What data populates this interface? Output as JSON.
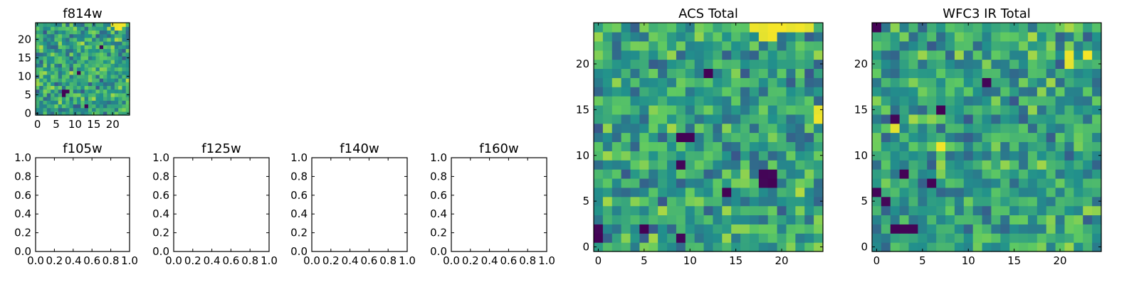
{
  "figure": {
    "colormap": [
      "#440154",
      "#3b528b",
      "#21918c",
      "#5ec962",
      "#fde725"
    ]
  },
  "chart_data": [
    {
      "id": "f814w",
      "type": "heatmap",
      "title": "f814w",
      "rows": 25,
      "cols": 25,
      "x_ticks": [
        0,
        5,
        10,
        15,
        20
      ],
      "y_ticks": [
        0,
        5,
        10,
        15,
        20
      ],
      "xlim": [
        -0.5,
        24.5
      ],
      "ylim": [
        -0.5,
        24.5
      ],
      "seed": 11,
      "value_range": [
        0,
        1
      ],
      "hot_spots": [
        [
          24,
          20
        ],
        [
          24,
          21
        ],
        [
          24,
          22
        ],
        [
          24,
          23
        ],
        [
          23,
          21
        ],
        [
          23,
          22
        ]
      ],
      "dark_spots": [
        [
          6,
          7
        ],
        [
          6,
          8
        ],
        [
          5,
          7
        ],
        [
          2,
          13
        ],
        [
          11,
          11
        ],
        [
          18,
          17
        ]
      ]
    },
    {
      "id": "f105w",
      "type": "empty",
      "title": "f105w",
      "x_ticks": [
        "0.0",
        "0.2",
        "0.4",
        "0.6",
        "0.8",
        "1.0"
      ],
      "y_ticks": [
        "0.0",
        "0.2",
        "0.4",
        "0.6",
        "0.8",
        "1.0"
      ],
      "xlim": [
        0,
        1
      ],
      "ylim": [
        0,
        1
      ]
    },
    {
      "id": "f125w",
      "type": "empty",
      "title": "f125w",
      "x_ticks": [
        "0.0",
        "0.2",
        "0.4",
        "0.6",
        "0.8",
        "1.0"
      ],
      "y_ticks": [
        "0.0",
        "0.2",
        "0.4",
        "0.6",
        "0.8",
        "1.0"
      ],
      "xlim": [
        0,
        1
      ],
      "ylim": [
        0,
        1
      ]
    },
    {
      "id": "f140w",
      "type": "empty",
      "title": "f140w",
      "x_ticks": [
        "0.0",
        "0.2",
        "0.4",
        "0.6",
        "0.8",
        "1.0"
      ],
      "y_ticks": [
        "0.0",
        "0.2",
        "0.4",
        "0.6",
        "0.8",
        "1.0"
      ],
      "xlim": [
        0,
        1
      ],
      "ylim": [
        0,
        1
      ]
    },
    {
      "id": "f160w",
      "type": "empty",
      "title": "f160w",
      "x_ticks": [
        "0.0",
        "0.2",
        "0.4",
        "0.6",
        "0.8",
        "1.0"
      ],
      "y_ticks": [
        "0.0",
        "0.2",
        "0.4",
        "0.6",
        "0.8",
        "1.0"
      ],
      "xlim": [
        0,
        1
      ],
      "ylim": [
        0,
        1
      ]
    },
    {
      "id": "acs-total",
      "type": "heatmap",
      "title": "ACS Total",
      "rows": 25,
      "cols": 25,
      "x_ticks": [
        0,
        5,
        10,
        15,
        20
      ],
      "y_ticks": [
        0,
        5,
        10,
        15,
        20
      ],
      "xlim": [
        -0.5,
        24.5
      ],
      "ylim": [
        -0.5,
        24.5
      ],
      "seed": 29,
      "value_range": [
        0,
        1
      ],
      "hot_spots": [
        [
          24,
          17
        ],
        [
          24,
          18
        ],
        [
          24,
          19
        ],
        [
          24,
          20
        ],
        [
          24,
          21
        ],
        [
          24,
          22
        ],
        [
          24,
          23
        ],
        [
          23,
          18
        ],
        [
          23,
          19
        ],
        [
          15,
          24
        ],
        [
          14,
          24
        ]
      ],
      "dark_spots": [
        [
          19,
          12
        ],
        [
          12,
          10
        ],
        [
          12,
          9
        ],
        [
          9,
          9
        ],
        [
          8,
          18
        ],
        [
          8,
          19
        ],
        [
          7,
          18
        ],
        [
          7,
          19
        ],
        [
          6,
          14
        ],
        [
          2,
          0
        ],
        [
          2,
          5
        ],
        [
          1,
          9
        ],
        [
          1,
          0
        ]
      ]
    },
    {
      "id": "wfc3-ir-total",
      "type": "heatmap",
      "title": "WFC3 IR Total",
      "rows": 25,
      "cols": 25,
      "x_ticks": [
        0,
        5,
        10,
        15,
        20
      ],
      "y_ticks": [
        0,
        5,
        10,
        15,
        20
      ],
      "xlim": [
        -0.5,
        24.5
      ],
      "ylim": [
        -0.5,
        24.5
      ],
      "seed": 47,
      "value_range": [
        0,
        1
      ],
      "hot_spots": [
        [
          21,
          21
        ],
        [
          20,
          21
        ],
        [
          21,
          23
        ],
        [
          11,
          7
        ],
        [
          13,
          2
        ]
      ],
      "dark_spots": [
        [
          24,
          0
        ],
        [
          18,
          12
        ],
        [
          15,
          7
        ],
        [
          14,
          2
        ],
        [
          8,
          3
        ],
        [
          7,
          6
        ],
        [
          6,
          0
        ],
        [
          5,
          1
        ],
        [
          2,
          2
        ],
        [
          2,
          3
        ],
        [
          2,
          4
        ]
      ]
    }
  ]
}
